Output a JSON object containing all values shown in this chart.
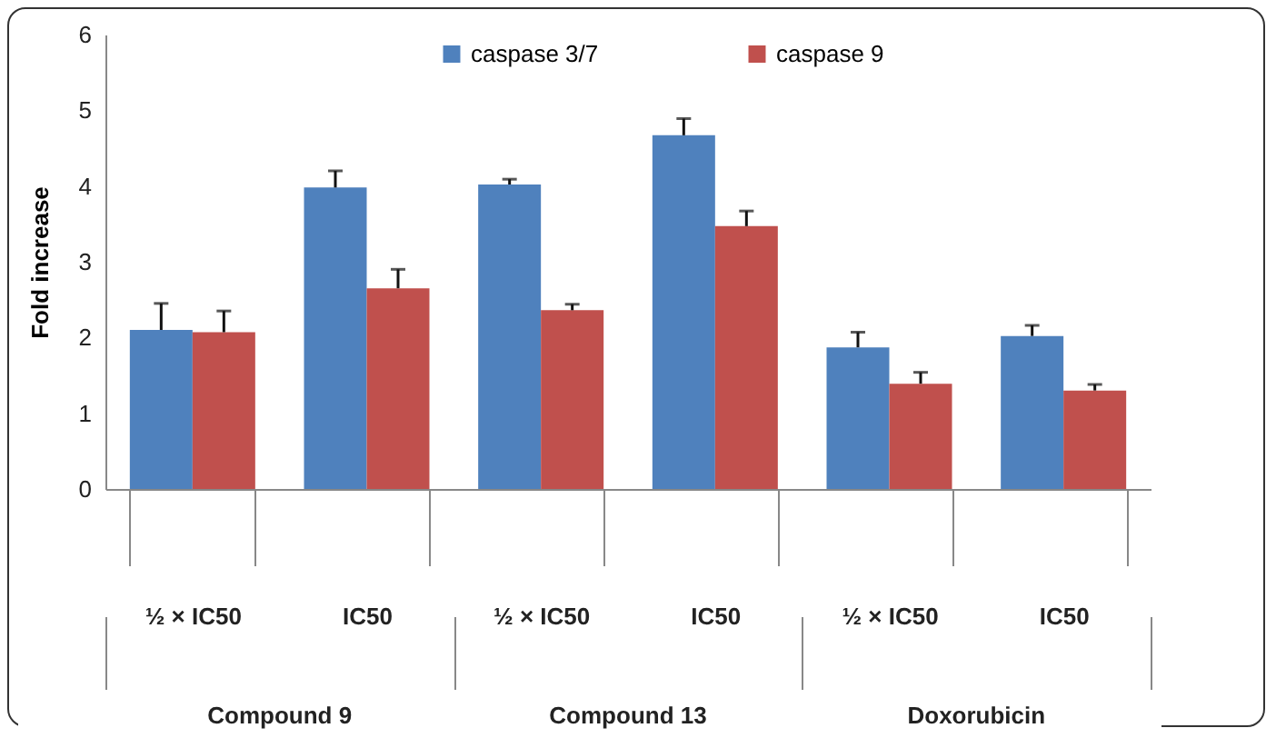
{
  "chart_data": {
    "type": "bar",
    "ylabel": "Fold increase",
    "categories": [
      "½ × IC50",
      "IC50",
      "½ × IC50",
      "IC50",
      "½ × IC50",
      "IC50"
    ],
    "annotations": [
      "Compound 9",
      "Compound 13",
      "Doxorubicin"
    ],
    "series": [
      {
        "name": "caspase 3/7",
        "color": "#4f81bd",
        "values": [
          2.1,
          3.98,
          4.02,
          4.67,
          1.87,
          2.02
        ],
        "errors": [
          0.35,
          0.22,
          0.07,
          0.22,
          0.2,
          0.14
        ]
      },
      {
        "name": "caspase 9",
        "color": "#c0504d",
        "values": [
          2.07,
          2.65,
          2.36,
          3.47,
          1.39,
          1.3
        ],
        "errors": [
          0.28,
          0.25,
          0.08,
          0.2,
          0.15,
          0.08
        ]
      }
    ],
    "ylim": [
      0,
      6
    ],
    "yticks": [
      0,
      1,
      2,
      3,
      4,
      5,
      6
    ],
    "grid": false,
    "legend": "top"
  }
}
